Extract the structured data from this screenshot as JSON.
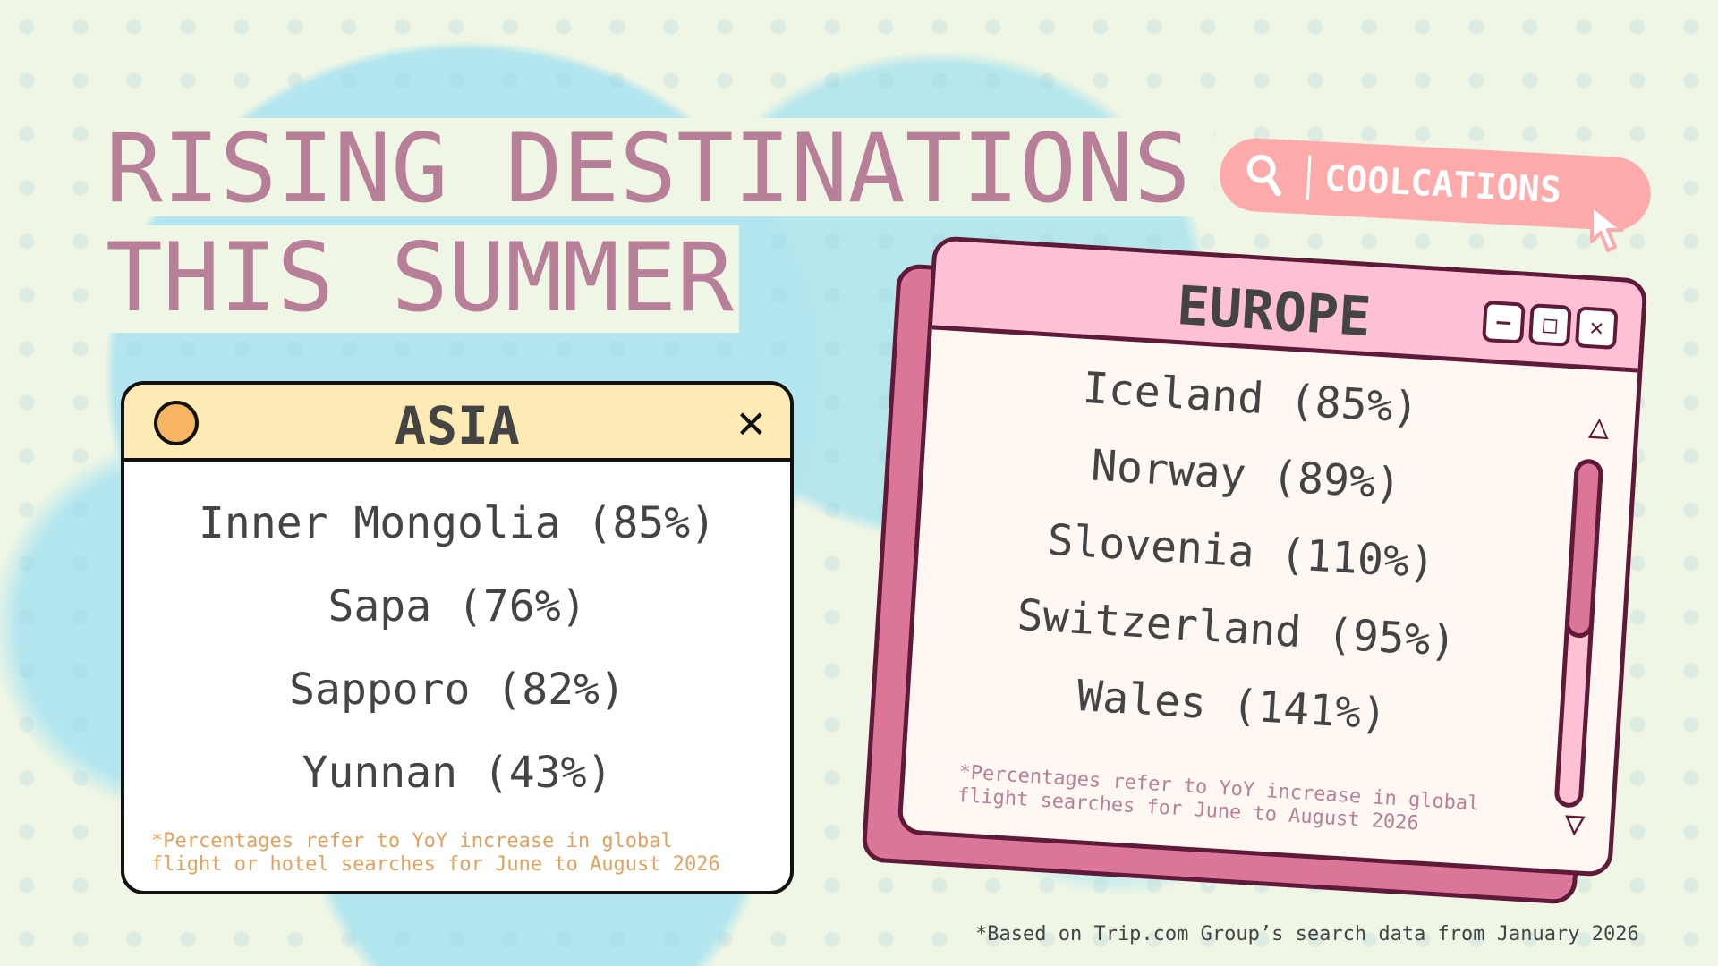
{
  "title": {
    "line1": "RISING DESTINATIONS",
    "line2": "THIS SUMMER"
  },
  "search_pill": {
    "label": "COOLCATIONS",
    "icon": "search-icon"
  },
  "asia": {
    "title": "ASIA",
    "items": [
      "Inner Mongolia (85%)",
      "Sapa (76%)",
      "Sapporo (82%)",
      "Yunnan (43%)"
    ],
    "note_line1": "*Percentages refer to YoY increase in global",
    "note_line2": "flight or hotel searches for June to August 2026"
  },
  "europe": {
    "title": "EUROPE",
    "items": [
      "Iceland (85%)",
      "Norway (89%)",
      "Slovenia (110%)",
      "Switzerland (95%)",
      "Wales (141%)"
    ],
    "note_line1": "*Percentages refer to YoY increase in global",
    "note_line2": "flight searches for June to August 2026",
    "buttons": {
      "minimize": "–",
      "maximize": "□",
      "close": "✕"
    }
  },
  "footnote": "*Based on Trip.com Group’s search data from January 2026",
  "colors": {
    "background": "#eff6e5",
    "blob": "#b3e6ee",
    "title": "#b87f98",
    "pill": "#fdaaab",
    "asia_header": "#fdeab4",
    "europe_header": "#fdc0d4",
    "europe_shadow": "#dc7698",
    "border": "#5e1a38"
  }
}
